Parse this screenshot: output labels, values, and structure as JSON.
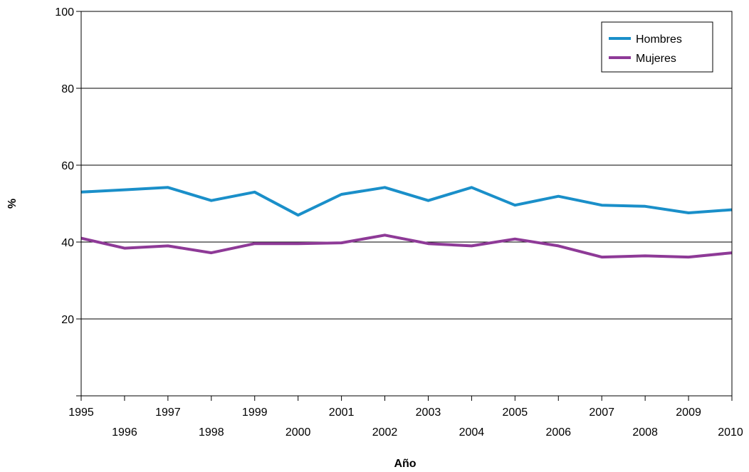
{
  "chart_data": {
    "type": "line",
    "title": "",
    "xlabel": "Año",
    "ylabel": "%",
    "ylim": [
      0,
      100
    ],
    "yticks": [
      20,
      40,
      60,
      80,
      100
    ],
    "grid": true,
    "legend_position": "top-right",
    "x": [
      "1995",
      "1996",
      "1997",
      "1998",
      "1999",
      "2000",
      "2001",
      "2002",
      "2003",
      "2004",
      "2005",
      "2006",
      "2007",
      "2008",
      "2009",
      "2010"
    ],
    "series": [
      {
        "name": "Hombres",
        "color": "#1a8fc9",
        "values": [
          53.0,
          53.6,
          54.2,
          50.8,
          53.0,
          47.0,
          52.4,
          54.2,
          50.8,
          54.2,
          49.6,
          51.9,
          49.6,
          49.3,
          47.6,
          48.4
        ]
      },
      {
        "name": "Mujeres",
        "color": "#8e3a97",
        "values": [
          41.0,
          38.4,
          39.0,
          37.2,
          39.6,
          39.6,
          39.8,
          41.8,
          39.6,
          39.0,
          40.8,
          39.0,
          36.1,
          36.4,
          36.1,
          37.2
        ]
      }
    ]
  }
}
